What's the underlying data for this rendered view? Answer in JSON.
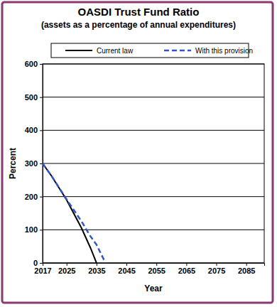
{
  "chart_data": {
    "type": "line",
    "title": "OASDI Trust Fund Ratio",
    "subtitle": "(assets as a percentage of annual expenditures)",
    "x_label": "Year",
    "y_label": "Percent",
    "x": [
      2017,
      2020,
      2025,
      2030,
      2033,
      2035,
      2038
    ],
    "series": [
      {
        "name": "Current law",
        "color": "#000000",
        "line_style": "solid",
        "values": [
          300,
          262,
          190,
          105,
          45,
          0,
          null
        ]
      },
      {
        "name": "With this provision",
        "color": "#3355cc",
        "line_style": "dashed",
        "values": [
          300,
          262,
          192,
          125,
          80,
          55,
          0
        ]
      }
    ],
    "xlim": [
      2017,
      2091
    ],
    "xticks": [
      2017,
      2025,
      2035,
      2045,
      2055,
      2065,
      2075,
      2085
    ],
    "ylim": [
      0,
      600
    ],
    "yticks": [
      0,
      100,
      200,
      300,
      400,
      500,
      600
    ],
    "grid": true,
    "legend": "top"
  }
}
